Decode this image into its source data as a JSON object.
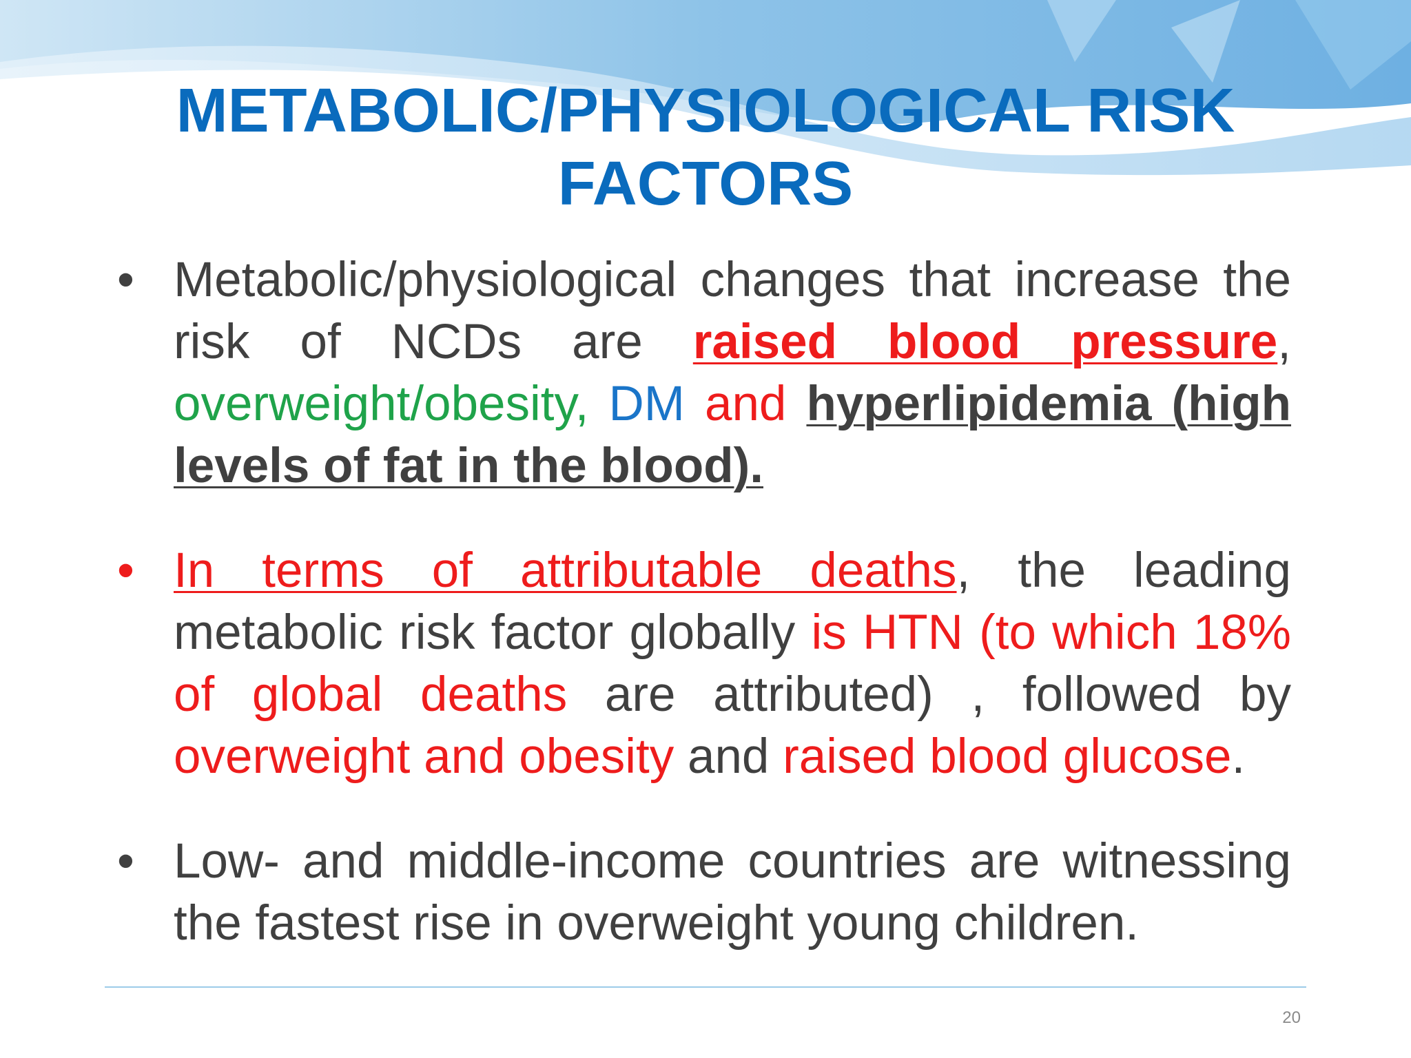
{
  "title": {
    "line1": "METABOLIC/PHYSIOLOGICAL RISK",
    "line2": "FACTORS"
  },
  "bullets": [
    {
      "marker": "•",
      "segments": [
        "Metabolic/physiological changes that increase the risk of NCDs are ",
        "raised blood pressure",
        ", ",
        "overweight/obesity,",
        " ",
        "DM",
        " ",
        "and",
        " ",
        "hyperlipidemia (high levels of fat in the blood)."
      ]
    },
    {
      "marker": "•",
      "segments": [
        "In terms of attributable deaths",
        ", the leading metabolic risk factor globally ",
        "is HTN (to which 18% of global deaths",
        " are attributed) , followed by ",
        "overweight and obesity",
        " and ",
        "raised blood glucose",
        "."
      ]
    },
    {
      "marker": "•",
      "segments": [
        "Low- and middle-income countries are witnessing the fastest rise in overweight young children."
      ]
    }
  ],
  "page_number": "20",
  "colors": {
    "title": "#0a6bbd",
    "body": "#404040",
    "red": "#ee1c1c",
    "green": "#1fa34a",
    "blue": "#1a75c9"
  }
}
